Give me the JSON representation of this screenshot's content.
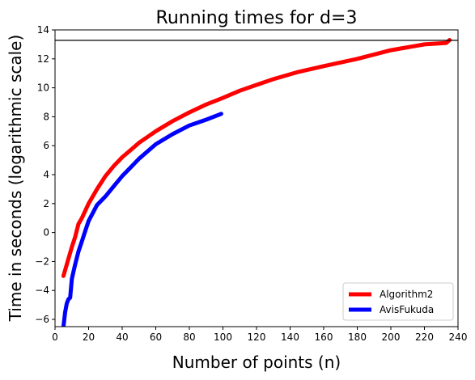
{
  "chart_data": {
    "type": "line",
    "title": "Running times for d=3",
    "xlabel": "Number of points (n)",
    "ylabel": "Time in seconds (logarithmic scale)",
    "xlim": [
      0,
      240
    ],
    "ylim": [
      -6.5,
      14
    ],
    "xticks": [
      0,
      20,
      40,
      60,
      80,
      100,
      120,
      140,
      160,
      180,
      200,
      220,
      240
    ],
    "yticks": [
      -6,
      -4,
      -2,
      0,
      2,
      4,
      6,
      8,
      10,
      12,
      14
    ],
    "grid": false,
    "legend_position": "lower-right",
    "reference_line": {
      "y": 13.28,
      "color": "#000000"
    },
    "series": [
      {
        "name": "Algorithm2",
        "color": "#ff0000",
        "x": [
          5,
          8,
          10,
          12,
          14,
          16,
          18,
          20,
          25,
          30,
          35,
          40,
          45,
          50,
          55,
          60,
          70,
          80,
          90,
          100,
          110,
          120,
          130,
          145,
          160,
          180,
          200,
          220,
          233,
          235
        ],
        "y": [
          -3.0,
          -1.8,
          -1.0,
          -0.3,
          0.6,
          1.0,
          1.5,
          2.0,
          3.0,
          3.9,
          4.6,
          5.2,
          5.7,
          6.2,
          6.6,
          7.0,
          7.7,
          8.3,
          8.85,
          9.3,
          9.8,
          10.2,
          10.6,
          11.1,
          11.5,
          12.0,
          12.6,
          13.0,
          13.1,
          13.3
        ]
      },
      {
        "name": "AvisFukuda",
        "color": "#0000ff",
        "x": [
          5,
          6,
          7,
          8,
          9,
          10,
          11,
          12,
          14,
          16,
          18,
          20,
          25,
          30,
          35,
          40,
          45,
          50,
          55,
          60,
          70,
          80,
          90,
          99
        ],
        "y": [
          -6.5,
          -5.5,
          -4.9,
          -4.6,
          -4.5,
          -3.2,
          -2.7,
          -2.2,
          -1.3,
          -0.6,
          0.1,
          0.8,
          1.9,
          2.5,
          3.2,
          3.9,
          4.5,
          5.1,
          5.6,
          6.1,
          6.8,
          7.4,
          7.8,
          8.2
        ]
      }
    ]
  }
}
